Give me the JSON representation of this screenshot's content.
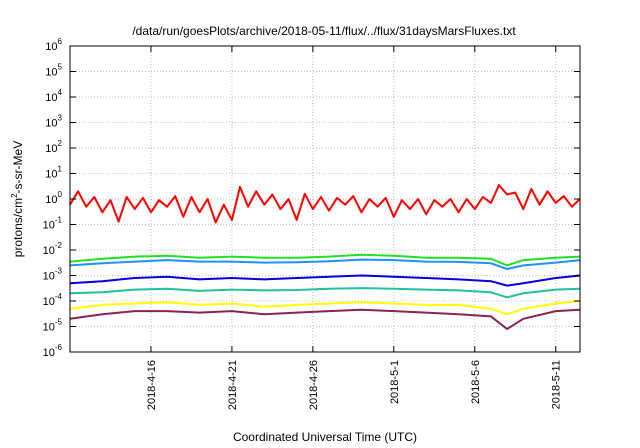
{
  "chart_data": {
    "type": "line",
    "title": "/data/run/goesPlots/archive/2018-05-11/flux/../flux/31daysMarsFluxes.txt",
    "xlabel": "Coordinated Universal Time (UTC)",
    "ylabel": "protons/cm²-s-sr-MeV",
    "ylabel_parts": {
      "base": "protons/cm",
      "sup": "2",
      "rest": "-s-sr-MeV"
    },
    "y_scale": "log",
    "ylim": [
      1e-06,
      1000000.0
    ],
    "y_ticks": [
      {
        "value": 1e-06,
        "base": "10",
        "exp": "-6"
      },
      {
        "value": 1e-05,
        "base": "10",
        "exp": "-5"
      },
      {
        "value": 0.0001,
        "base": "10",
        "exp": "-4"
      },
      {
        "value": 0.001,
        "base": "10",
        "exp": "-3"
      },
      {
        "value": 0.01,
        "base": "10",
        "exp": "-2"
      },
      {
        "value": 0.1,
        "base": "10",
        "exp": "-1"
      },
      {
        "value": 1.0,
        "base": "10",
        "exp": "0"
      },
      {
        "value": 10.0,
        "base": "10",
        "exp": "1"
      },
      {
        "value": 100.0,
        "base": "10",
        "exp": "2"
      },
      {
        "value": 1000.0,
        "base": "10",
        "exp": "3"
      },
      {
        "value": 10000.0,
        "base": "10",
        "exp": "4"
      },
      {
        "value": 100000.0,
        "base": "10",
        "exp": "5"
      },
      {
        "value": 1000000.0,
        "base": "10",
        "exp": "6"
      }
    ],
    "xlim": [
      "2018-04-11",
      "2018-05-12T12:00"
    ],
    "x_ticks": [
      {
        "value": "2018-04-16",
        "label": "2018-4-16"
      },
      {
        "value": "2018-04-21",
        "label": "2018-4-21"
      },
      {
        "value": "2018-04-26",
        "label": "2018-4-26"
      },
      {
        "value": "2018-05-01",
        "label": "2018-5-1"
      },
      {
        "value": "2018-05-06",
        "label": "2018-5-6"
      },
      {
        "value": "2018-05-11",
        "label": "2018-5-11"
      }
    ],
    "grid": true,
    "grid_style": "dotted",
    "legend": "none",
    "series": [
      {
        "color": "#ff0000",
        "values": [
          [
            "2018-04-11T00:00",
            0.6
          ],
          [
            "2018-04-11T12:00",
            2.0
          ],
          [
            "2018-04-12T00:00",
            0.5
          ],
          [
            "2018-04-12T12:00",
            1.2
          ],
          [
            "2018-04-13T00:00",
            0.3
          ],
          [
            "2018-04-13T12:00",
            0.9
          ],
          [
            "2018-04-14T00:00",
            0.13
          ],
          [
            "2018-04-14T12:00",
            1.2
          ],
          [
            "2018-04-15T00:00",
            0.4
          ],
          [
            "2018-04-15T12:00",
            1.1
          ],
          [
            "2018-04-16T00:00",
            0.3
          ],
          [
            "2018-04-16T12:00",
            0.9
          ],
          [
            "2018-04-17T00:00",
            0.5
          ],
          [
            "2018-04-17T12:00",
            1.3
          ],
          [
            "2018-04-18T00:00",
            0.2
          ],
          [
            "2018-04-18T12:00",
            1.2
          ],
          [
            "2018-04-19T00:00",
            0.3
          ],
          [
            "2018-04-19T12:00",
            1.0
          ],
          [
            "2018-04-20T00:00",
            0.12
          ],
          [
            "2018-04-20T12:00",
            0.6
          ],
          [
            "2018-04-21T00:00",
            0.15
          ],
          [
            "2018-04-21T12:00",
            3.0
          ],
          [
            "2018-04-22T00:00",
            0.5
          ],
          [
            "2018-04-22T12:00",
            2.0
          ],
          [
            "2018-04-23T00:00",
            0.6
          ],
          [
            "2018-04-23T12:00",
            1.5
          ],
          [
            "2018-04-24T00:00",
            0.4
          ],
          [
            "2018-04-24T12:00",
            1.0
          ],
          [
            "2018-04-25T00:00",
            0.15
          ],
          [
            "2018-04-25T12:00",
            1.6
          ],
          [
            "2018-04-26T00:00",
            0.4
          ],
          [
            "2018-04-26T12:00",
            1.2
          ],
          [
            "2018-04-27T00:00",
            0.35
          ],
          [
            "2018-04-27T12:00",
            1.1
          ],
          [
            "2018-04-28T00:00",
            0.6
          ],
          [
            "2018-04-28T12:00",
            1.3
          ],
          [
            "2018-04-29T00:00",
            0.3
          ],
          [
            "2018-04-29T12:00",
            1.0
          ],
          [
            "2018-04-30T00:00",
            0.5
          ],
          [
            "2018-04-30T12:00",
            1.1
          ],
          [
            "2018-05-01T00:00",
            0.2
          ],
          [
            "2018-05-01T12:00",
            0.9
          ],
          [
            "2018-05-02T00:00",
            0.4
          ],
          [
            "2018-05-02T12:00",
            1.0
          ],
          [
            "2018-05-03T00:00",
            0.25
          ],
          [
            "2018-05-03T12:00",
            0.9
          ],
          [
            "2018-05-04T00:00",
            0.5
          ],
          [
            "2018-05-04T12:00",
            1.0
          ],
          [
            "2018-05-05T00:00",
            0.3
          ],
          [
            "2018-05-05T12:00",
            1.0
          ],
          [
            "2018-05-06T00:00",
            0.4
          ],
          [
            "2018-05-06T12:00",
            1.2
          ],
          [
            "2018-05-07T00:00",
            0.7
          ],
          [
            "2018-05-07T12:00",
            3.5
          ],
          [
            "2018-05-08T00:00",
            1.5
          ],
          [
            "2018-05-08T12:00",
            1.8
          ],
          [
            "2018-05-09T00:00",
            0.4
          ],
          [
            "2018-05-09T12:00",
            2.5
          ],
          [
            "2018-05-10T00:00",
            0.6
          ],
          [
            "2018-05-10T12:00",
            2.0
          ],
          [
            "2018-05-11T00:00",
            0.7
          ],
          [
            "2018-05-11T12:00",
            1.3
          ],
          [
            "2018-05-12T00:00",
            0.5
          ],
          [
            "2018-05-12T12:00",
            1.0
          ]
        ]
      },
      {
        "color": "#22e022",
        "values": [
          [
            "2018-04-11T00:00",
            0.0035
          ],
          [
            "2018-04-13T00:00",
            0.0045
          ],
          [
            "2018-04-15T00:00",
            0.0055
          ],
          [
            "2018-04-17T00:00",
            0.006
          ],
          [
            "2018-04-19T00:00",
            0.005
          ],
          [
            "2018-04-21T00:00",
            0.0055
          ],
          [
            "2018-04-23T00:00",
            0.005
          ],
          [
            "2018-04-25T00:00",
            0.005
          ],
          [
            "2018-04-27T00:00",
            0.0055
          ],
          [
            "2018-04-29T00:00",
            0.0065
          ],
          [
            "2018-05-01T00:00",
            0.006
          ],
          [
            "2018-05-03T00:00",
            0.005
          ],
          [
            "2018-05-05T00:00",
            0.005
          ],
          [
            "2018-05-07T00:00",
            0.0045
          ],
          [
            "2018-05-08T00:00",
            0.0025
          ],
          [
            "2018-05-09T00:00",
            0.004
          ],
          [
            "2018-05-11T00:00",
            0.005
          ],
          [
            "2018-05-12T12:00",
            0.0055
          ]
        ]
      },
      {
        "color": "#1e90ff",
        "values": [
          [
            "2018-04-11T00:00",
            0.0025
          ],
          [
            "2018-04-13T00:00",
            0.003
          ],
          [
            "2018-04-15T00:00",
            0.0035
          ],
          [
            "2018-04-17T00:00",
            0.004
          ],
          [
            "2018-04-19T00:00",
            0.0035
          ],
          [
            "2018-04-21T00:00",
            0.0035
          ],
          [
            "2018-04-23T00:00",
            0.0032
          ],
          [
            "2018-04-25T00:00",
            0.0033
          ],
          [
            "2018-04-27T00:00",
            0.0036
          ],
          [
            "2018-04-29T00:00",
            0.0042
          ],
          [
            "2018-05-01T00:00",
            0.004
          ],
          [
            "2018-05-03T00:00",
            0.0035
          ],
          [
            "2018-05-05T00:00",
            0.0034
          ],
          [
            "2018-05-07T00:00",
            0.003
          ],
          [
            "2018-05-08T00:00",
            0.0018
          ],
          [
            "2018-05-09T00:00",
            0.0025
          ],
          [
            "2018-05-11T00:00",
            0.0032
          ],
          [
            "2018-05-12T12:00",
            0.004
          ]
        ]
      },
      {
        "color": "#0000e0",
        "values": [
          [
            "2018-04-11T00:00",
            0.0005
          ],
          [
            "2018-04-13T00:00",
            0.0006
          ],
          [
            "2018-04-15T00:00",
            0.0008
          ],
          [
            "2018-04-17T00:00",
            0.0009
          ],
          [
            "2018-04-19T00:00",
            0.0007
          ],
          [
            "2018-04-21T00:00",
            0.0008
          ],
          [
            "2018-04-23T00:00",
            0.0007
          ],
          [
            "2018-04-25T00:00",
            0.0008
          ],
          [
            "2018-04-27T00:00",
            0.0009
          ],
          [
            "2018-04-29T00:00",
            0.001
          ],
          [
            "2018-05-01T00:00",
            0.0009
          ],
          [
            "2018-05-03T00:00",
            0.0008
          ],
          [
            "2018-05-05T00:00",
            0.0007
          ],
          [
            "2018-05-07T00:00",
            0.0006
          ],
          [
            "2018-05-08T00:00",
            0.0004
          ],
          [
            "2018-05-09T00:00",
            0.0005
          ],
          [
            "2018-05-11T00:00",
            0.0008
          ],
          [
            "2018-05-12T12:00",
            0.001
          ]
        ]
      },
      {
        "color": "#20c0a0",
        "values": [
          [
            "2018-04-11T00:00",
            0.0002
          ],
          [
            "2018-04-13T00:00",
            0.00022
          ],
          [
            "2018-04-15T00:00",
            0.00028
          ],
          [
            "2018-04-17T00:00",
            0.0003
          ],
          [
            "2018-04-19T00:00",
            0.00025
          ],
          [
            "2018-04-21T00:00",
            0.00028
          ],
          [
            "2018-04-23T00:00",
            0.00026
          ],
          [
            "2018-04-25T00:00",
            0.00027
          ],
          [
            "2018-04-27T00:00",
            0.0003
          ],
          [
            "2018-04-29T00:00",
            0.00032
          ],
          [
            "2018-05-01T00:00",
            0.0003
          ],
          [
            "2018-05-03T00:00",
            0.00028
          ],
          [
            "2018-05-05T00:00",
            0.00026
          ],
          [
            "2018-05-07T00:00",
            0.00022
          ],
          [
            "2018-05-08T00:00",
            0.00014
          ],
          [
            "2018-05-09T00:00",
            0.0002
          ],
          [
            "2018-05-11T00:00",
            0.00028
          ],
          [
            "2018-05-12T12:00",
            0.0003
          ]
        ]
      },
      {
        "color": "#ffff00",
        "values": [
          [
            "2018-04-11T00:00",
            5e-05
          ],
          [
            "2018-04-13T00:00",
            7e-05
          ],
          [
            "2018-04-15T00:00",
            8e-05
          ],
          [
            "2018-04-17T00:00",
            9e-05
          ],
          [
            "2018-04-19T00:00",
            7e-05
          ],
          [
            "2018-04-21T00:00",
            8e-05
          ],
          [
            "2018-04-23T00:00",
            6e-05
          ],
          [
            "2018-04-25T00:00",
            7e-05
          ],
          [
            "2018-04-27T00:00",
            8e-05
          ],
          [
            "2018-04-29T00:00",
            9e-05
          ],
          [
            "2018-05-01T00:00",
            8e-05
          ],
          [
            "2018-05-03T00:00",
            7e-05
          ],
          [
            "2018-05-05T00:00",
            7e-05
          ],
          [
            "2018-05-07T00:00",
            5e-05
          ],
          [
            "2018-05-08T00:00",
            3e-05
          ],
          [
            "2018-05-09T00:00",
            5e-05
          ],
          [
            "2018-05-11T00:00",
            8e-05
          ],
          [
            "2018-05-12T12:00",
            0.0001
          ]
        ]
      },
      {
        "color": "#8b2252",
        "values": [
          [
            "2018-04-11T00:00",
            2e-05
          ],
          [
            "2018-04-13T00:00",
            3e-05
          ],
          [
            "2018-04-15T00:00",
            4e-05
          ],
          [
            "2018-04-17T00:00",
            4e-05
          ],
          [
            "2018-04-19T00:00",
            3.5e-05
          ],
          [
            "2018-04-21T00:00",
            4e-05
          ],
          [
            "2018-04-23T00:00",
            3e-05
          ],
          [
            "2018-04-25T00:00",
            3.5e-05
          ],
          [
            "2018-04-27T00:00",
            4e-05
          ],
          [
            "2018-04-29T00:00",
            4.5e-05
          ],
          [
            "2018-05-01T00:00",
            4e-05
          ],
          [
            "2018-05-03T00:00",
            3.5e-05
          ],
          [
            "2018-05-05T00:00",
            3e-05
          ],
          [
            "2018-05-07T00:00",
            2.5e-05
          ],
          [
            "2018-05-08T00:00",
            8e-06
          ],
          [
            "2018-05-09T00:00",
            2e-05
          ],
          [
            "2018-05-11T00:00",
            4e-05
          ],
          [
            "2018-05-12T12:00",
            4.5e-05
          ]
        ]
      }
    ]
  }
}
